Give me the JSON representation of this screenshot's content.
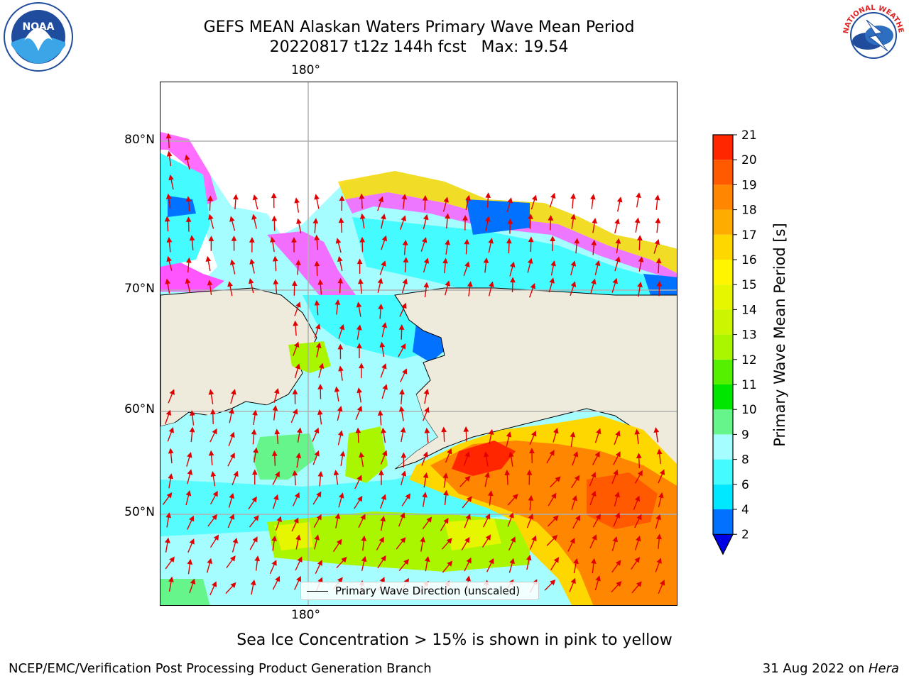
{
  "title_line1": "GEFS MEAN Alaskan Waters Primary Wave Mean Period",
  "title_line2": "20220817 t12z 144h fcst   Max: 19.54",
  "map": {
    "lon_label_top": "180°",
    "lon_label_bottom": "180°",
    "lat_labels": [
      "80°N",
      "70°N",
      "60°N",
      "50°N"
    ],
    "legend_label": "Primary Wave Direction (unscaled)",
    "ice_color": "#ff55ff",
    "land_color": "#efebdc",
    "ocean_gridline_color": "#b0b0b0",
    "arrow_color": "#e00000"
  },
  "colorbar": {
    "label": "Primary Wave Mean Period [s]",
    "ticks": [
      "2",
      "4",
      "6",
      "8",
      "9",
      "10",
      "11",
      "12",
      "13",
      "14",
      "15",
      "16",
      "17",
      "18",
      "19",
      "20",
      "21"
    ],
    "colors": [
      "#0072ff",
      "#00e8ff",
      "#44fbff",
      "#a6fdff",
      "#66f58a",
      "#00e600",
      "#55f000",
      "#aaf500",
      "#cbf500",
      "#e6f500",
      "#fff500",
      "#ffd700",
      "#ffac00",
      "#ff8600",
      "#ff5a00",
      "#ff2600"
    ],
    "extend_min_color": "#0000e6"
  },
  "caption": "Sea Ice Concentration > 15% is shown in pink to yellow",
  "footer_left": "NCEP/EMC/Verification Post Processing Product Generation Branch",
  "footer_right_date": "31 Aug 2022 on ",
  "footer_right_host": "Hera",
  "logos": {
    "noaa_text": "NOAA",
    "nws_text": "NATIONAL WEATHER SERVICE"
  }
}
